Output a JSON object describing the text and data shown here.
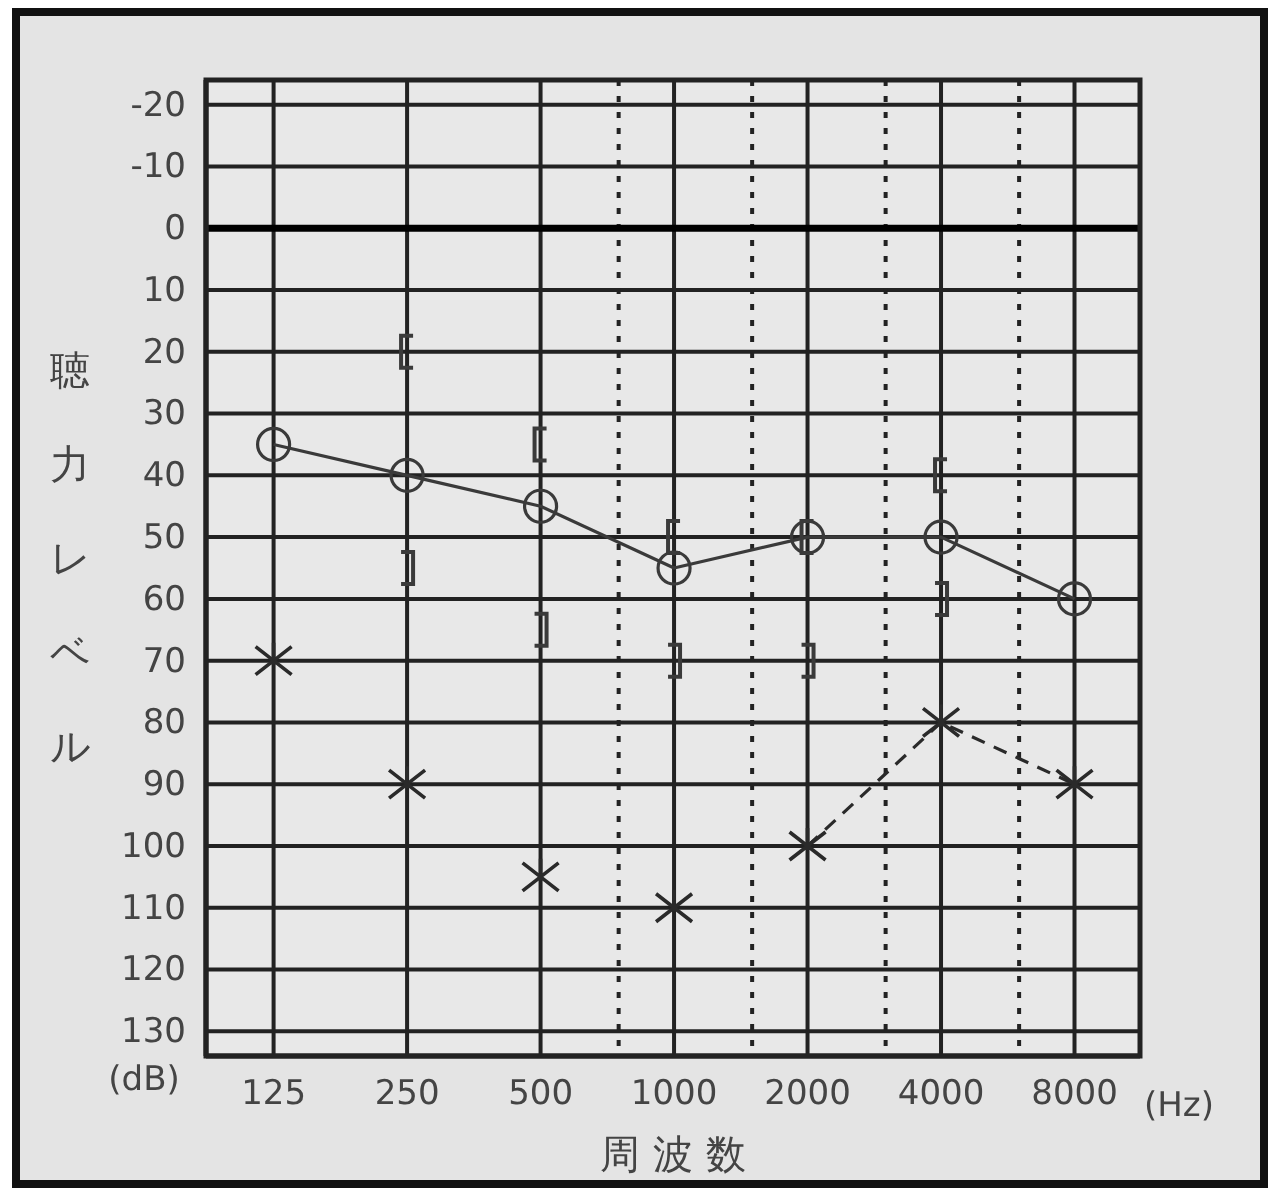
{
  "chart_data": {
    "type": "line",
    "xlabel": "周 波 数",
    "ylabel": "聴力レベル",
    "annotations": [
      "(dB)",
      "(Hz)"
    ],
    "log": "x",
    "grid": true,
    "xlim": [
      88,
      11240
    ],
    "xticks": [
      125,
      250,
      500,
      {
        "value": 750,
        "label": null
      },
      1000,
      {
        "value": 1500,
        "label": null
      },
      2000,
      {
        "value": 3000,
        "label": null
      },
      4000,
      {
        "value": 6000,
        "label": null
      },
      8000
    ],
    "ylim": [
      134,
      -24
    ],
    "yticks": [
      -20,
      -10,
      0,
      10,
      20,
      30,
      40,
      50,
      60,
      70,
      80,
      90,
      100,
      110,
      120,
      130
    ],
    "ref_lines": [
      {
        "axis": "y",
        "value": 0
      }
    ],
    "series": [
      {
        "type": "line",
        "color": "#3a3a3a",
        "marker": "circle",
        "line_style": "solid",
        "x": [
          125,
          250,
          500,
          1000,
          2000,
          4000,
          8000
        ],
        "values": [
          35,
          40,
          45,
          55,
          50,
          50,
          60
        ]
      },
      {
        "type": "scatter",
        "color": "#2a2a2a",
        "marker": "cross",
        "x": [
          125,
          250,
          500,
          1000
        ],
        "values": [
          70,
          90,
          105,
          110
        ]
      },
      {
        "type": "line",
        "color": "#2a2a2a",
        "marker": "cross",
        "line_style": "dashed",
        "x": [
          2000,
          4000,
          8000
        ],
        "values": [
          100,
          80,
          90
        ]
      },
      {
        "type": "scatter",
        "color": "#3a3a3a",
        "x": [
          250,
          500,
          1000,
          2000,
          4000
        ],
        "values": [
          20,
          35,
          50,
          50,
          40
        ]
      },
      {
        "type": "scatter",
        "color": "#3a3a3a",
        "x": [
          250,
          500,
          1000,
          2000,
          4000
        ],
        "values": [
          55,
          65,
          70,
          70,
          60
        ]
      }
    ]
  }
}
